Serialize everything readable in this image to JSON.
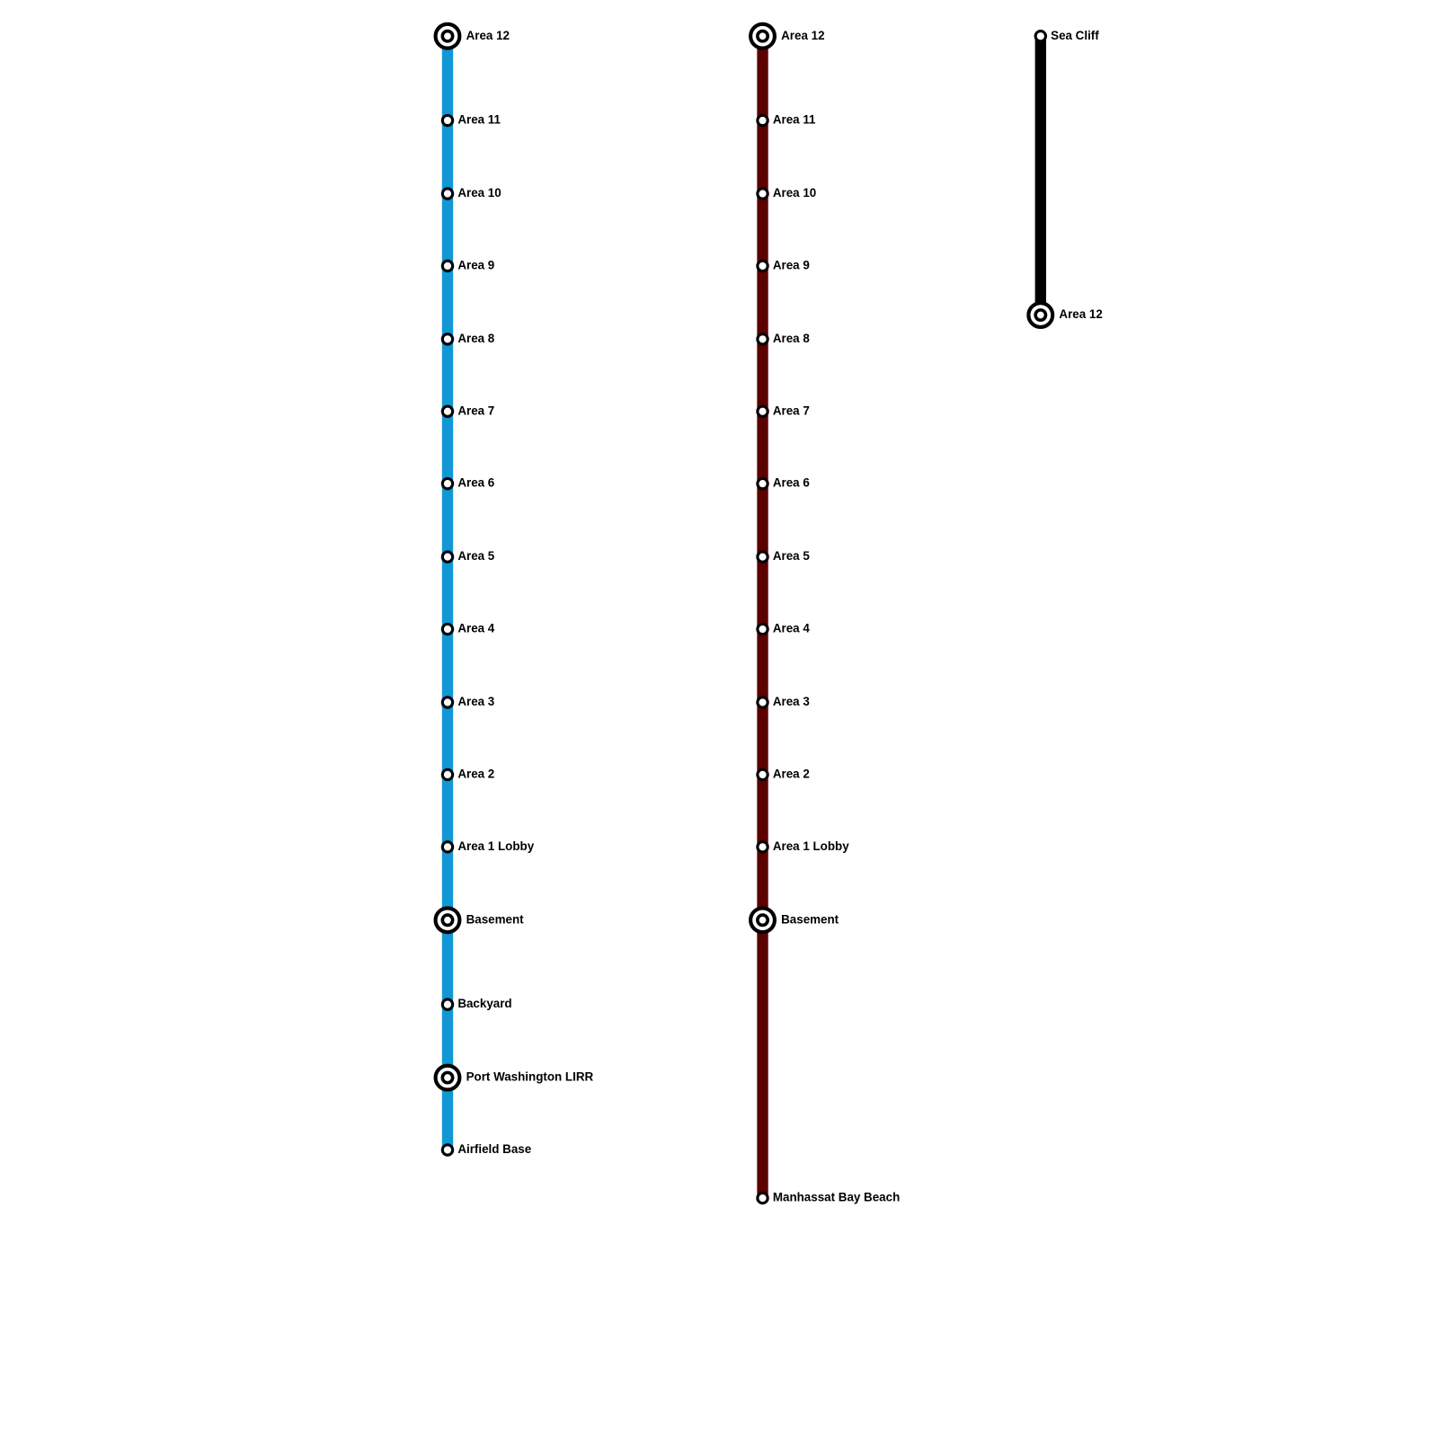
{
  "lines": [
    {
      "color": "#1197d6",
      "stations": [
        {
          "label": "Area 12",
          "interchange": true
        },
        {
          "label": "Area 11",
          "interchange": false
        },
        {
          "label": "Area 10",
          "interchange": false
        },
        {
          "label": "Area 9",
          "interchange": false
        },
        {
          "label": "Area 8",
          "interchange": false
        },
        {
          "label": "Area 7",
          "interchange": false
        },
        {
          "label": "Area 6",
          "interchange": false
        },
        {
          "label": "Area 5",
          "interchange": false
        },
        {
          "label": "Area 4",
          "interchange": false
        },
        {
          "label": "Area 3",
          "interchange": false
        },
        {
          "label": "Area 2",
          "interchange": false
        },
        {
          "label": "Area 1 Lobby",
          "interchange": false
        },
        {
          "label": "Basement",
          "interchange": true
        },
        {
          "label": "Backyard",
          "interchange": false
        },
        {
          "label": "Port Washington LIRR",
          "interchange": true
        },
        {
          "label": "Airfield Base",
          "interchange": false
        }
      ]
    },
    {
      "color": "#5c0000",
      "stations": [
        {
          "label": "Area 12",
          "interchange": true
        },
        {
          "label": "Area 11",
          "interchange": false
        },
        {
          "label": "Area 10",
          "interchange": false
        },
        {
          "label": "Area 9",
          "interchange": false
        },
        {
          "label": "Area 8",
          "interchange": false
        },
        {
          "label": "Area 7",
          "interchange": false
        },
        {
          "label": "Area 6",
          "interchange": false
        },
        {
          "label": "Area 5",
          "interchange": false
        },
        {
          "label": "Area 4",
          "interchange": false
        },
        {
          "label": "Area 3",
          "interchange": false
        },
        {
          "label": "Area 2",
          "interchange": false
        },
        {
          "label": "Area 1 Lobby",
          "interchange": false
        },
        {
          "label": "Basement",
          "interchange": true
        },
        {
          "label": "Manhassat Bay Beach",
          "interchange": false
        }
      ]
    },
    {
      "color": "#000000",
      "stations": [
        {
          "label": "Sea Cliff",
          "interchange": false
        },
        {
          "label": "Area 12",
          "interchange": true
        }
      ]
    }
  ]
}
